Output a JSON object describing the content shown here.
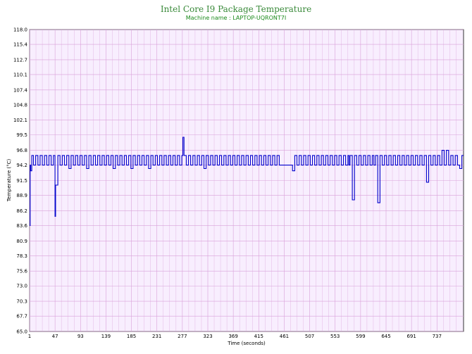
{
  "chart_data": {
    "type": "line",
    "title": "Intel Core I9 Package Temperature",
    "subtitle": "Machine name : LAPTOP-UQRONT7I",
    "xlabel": "Time (seconds)",
    "ylabel": "Temperature (°C)",
    "xlim": [
      1,
      785
    ],
    "ylim": [
      65.0,
      118.0
    ],
    "y_ticks": [
      "118.0",
      "115.4",
      "112.7",
      "110.1",
      "107.4",
      "104.8",
      "102.1",
      "99.5",
      "96.8",
      "94.2",
      "91.5",
      "88.9",
      "86.2",
      "83.6",
      "80.9",
      "78.3",
      "75.6",
      "73.0",
      "70.3",
      "67.7",
      "65.0"
    ],
    "x_ticks": [
      "1",
      "47",
      "93",
      "139",
      "185",
      "231",
      "277",
      "323",
      "369",
      "415",
      "461",
      "507",
      "553",
      "599",
      "645",
      "691",
      "737"
    ],
    "grid": true,
    "colors": {
      "background": "#f8eefe",
      "grid": "#d9a0d9",
      "line": "#0000cc"
    },
    "series": [
      {
        "name": "",
        "baseline": 94.2,
        "high_level": 95.9,
        "x": [
          1,
          2,
          3,
          5,
          8,
          12,
          16,
          20,
          24,
          28,
          32,
          36,
          40,
          44,
          47,
          48,
          52,
          56,
          60,
          64,
          68,
          72,
          76,
          80,
          84,
          88,
          92,
          96,
          100,
          104,
          108,
          112,
          116,
          120,
          124,
          128,
          132,
          136,
          140,
          144,
          148,
          152,
          156,
          160,
          164,
          168,
          172,
          176,
          180,
          184,
          188,
          192,
          196,
          200,
          204,
          208,
          212,
          216,
          220,
          224,
          228,
          232,
          236,
          240,
          244,
          248,
          252,
          256,
          260,
          264,
          268,
          272,
          276,
          278,
          280,
          284,
          288,
          292,
          296,
          300,
          304,
          308,
          312,
          316,
          320,
          324,
          328,
          332,
          336,
          340,
          344,
          348,
          352,
          356,
          360,
          364,
          368,
          372,
          376,
          380,
          384,
          388,
          392,
          396,
          400,
          404,
          408,
          412,
          416,
          420,
          424,
          428,
          432,
          436,
          440,
          444,
          448,
          452,
          456,
          460,
          464,
          468,
          472,
          476,
          480,
          484,
          488,
          492,
          496,
          500,
          504,
          508,
          512,
          516,
          520,
          524,
          528,
          532,
          536,
          540,
          544,
          548,
          552,
          556,
          560,
          564,
          568,
          572,
          576,
          578,
          580,
          584,
          588,
          592,
          596,
          600,
          604,
          608,
          612,
          616,
          620,
          623,
          626,
          630,
          634,
          638,
          642,
          646,
          650,
          654,
          658,
          662,
          666,
          670,
          674,
          678,
          682,
          686,
          690,
          694,
          698,
          702,
          706,
          710,
          714,
          718,
          722,
          726,
          730,
          734,
          738,
          742,
          746,
          750,
          754,
          758,
          762,
          766,
          770,
          774,
          778,
          782,
          785
        ],
        "values": [
          83.6,
          94.2,
          93.2,
          95.9,
          94.2,
          95.9,
          94.2,
          95.9,
          94.2,
          95.9,
          94.2,
          95.9,
          94.2,
          95.9,
          85.2,
          90.7,
          95.9,
          94.2,
          95.9,
          94.2,
          95.9,
          93.6,
          95.9,
          94.2,
          95.9,
          94.2,
          95.9,
          94.2,
          95.9,
          93.6,
          95.9,
          94.2,
          95.9,
          94.2,
          95.9,
          94.2,
          95.9,
          94.2,
          95.9,
          94.2,
          95.9,
          93.6,
          95.9,
          94.2,
          95.9,
          94.2,
          95.9,
          94.2,
          95.9,
          93.6,
          95.9,
          94.2,
          95.9,
          94.2,
          95.9,
          94.2,
          95.9,
          93.6,
          95.9,
          94.2,
          95.9,
          94.2,
          95.9,
          94.2,
          95.9,
          94.2,
          95.9,
          94.2,
          95.9,
          94.2,
          95.9,
          94.2,
          95.9,
          99.1,
          95.9,
          94.2,
          95.9,
          94.2,
          95.9,
          94.2,
          95.9,
          94.2,
          95.9,
          93.6,
          95.9,
          94.2,
          95.9,
          94.2,
          95.9,
          94.2,
          95.9,
          94.2,
          95.9,
          94.2,
          95.9,
          94.2,
          95.9,
          94.2,
          95.9,
          94.2,
          95.9,
          94.2,
          95.9,
          94.2,
          95.9,
          94.2,
          95.9,
          94.2,
          95.9,
          94.2,
          95.9,
          94.2,
          95.9,
          94.2,
          95.9,
          94.2,
          95.9,
          94.2,
          94.2,
          94.2,
          94.2,
          94.2,
          94.2,
          93.2,
          95.9,
          94.2,
          95.9,
          94.2,
          95.9,
          94.2,
          95.9,
          94.2,
          95.9,
          94.2,
          95.9,
          94.2,
          95.9,
          94.2,
          95.9,
          94.2,
          95.9,
          94.2,
          95.9,
          94.2,
          95.9,
          94.2,
          95.9,
          94.2,
          95.9,
          94.2,
          95.9,
          88.1,
          95.9,
          94.2,
          95.9,
          94.2,
          95.9,
          94.2,
          95.9,
          94.2,
          95.9,
          94.2,
          95.9,
          87.6,
          95.9,
          94.2,
          95.9,
          94.2,
          95.9,
          94.2,
          95.9,
          94.2,
          95.9,
          94.2,
          95.9,
          94.2,
          95.9,
          94.2,
          95.9,
          94.2,
          95.9,
          94.2,
          95.9,
          94.2,
          95.9,
          91.2,
          95.9,
          94.2,
          95.9,
          94.2,
          95.9,
          94.2,
          96.8,
          94.2,
          96.8,
          94.2,
          95.9,
          94.2,
          95.9,
          94.2,
          93.6,
          95.9,
          95.9
        ]
      }
    ]
  }
}
